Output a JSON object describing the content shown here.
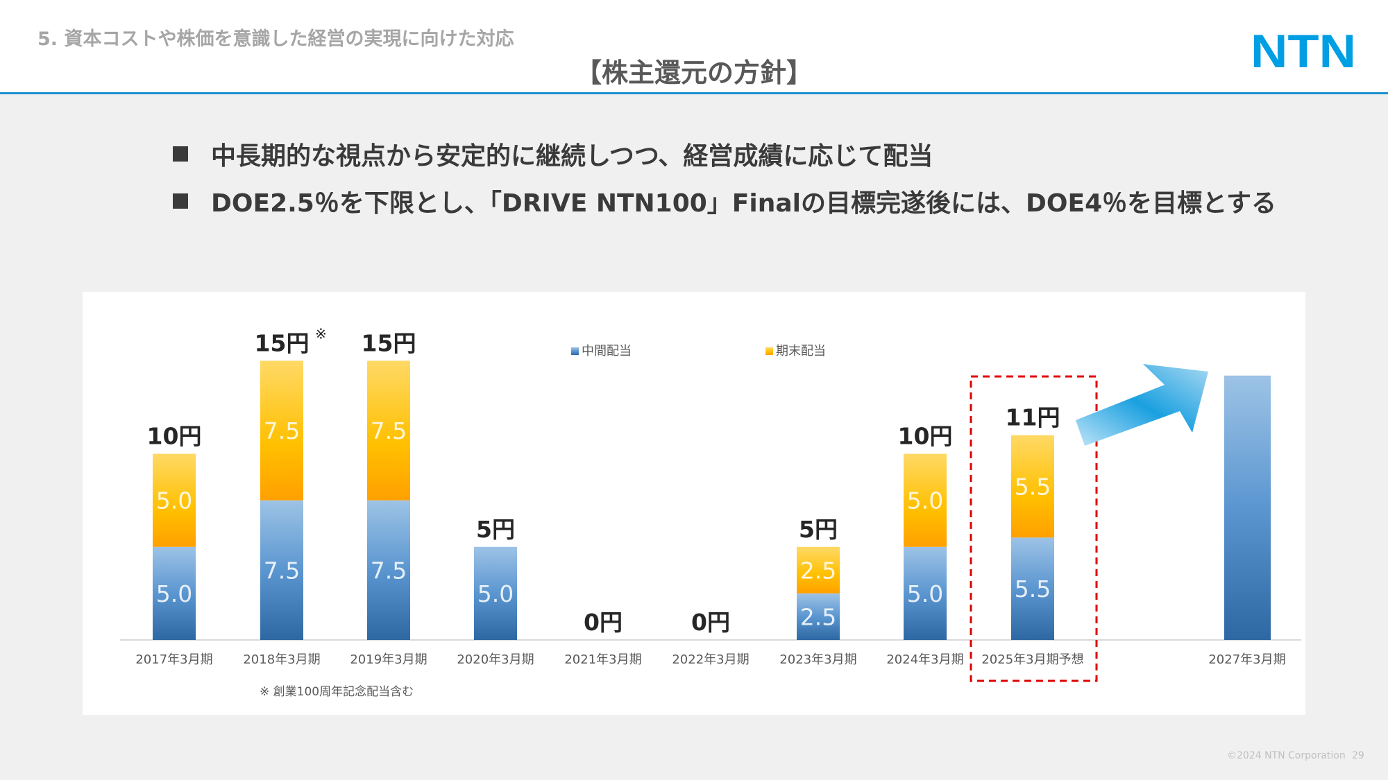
{
  "header": {
    "section": "5. 資本コストや株価を意識した経営の実現に向けた対応",
    "title": "【株主還元の方針】",
    "logo_text": "NTN",
    "accent": "#1a8fcf"
  },
  "bullets": [
    "中長期的な視点から安定的に継続しつつ、経営成績に応じて配当",
    "DOE2.5％を下限とし、「DRIVE NTN100」Finalの目標完遂後には、DOE4％を目標とする"
  ],
  "chart_data": {
    "type": "bar",
    "stacked": true,
    "categories": [
      "2017年3月期",
      "2018年3月期",
      "2019年3月期",
      "2020年3月期",
      "2021年3月期",
      "2022年3月期",
      "2023年3月期",
      "2024年3月期",
      "2025年3月期予想",
      "2027年3月期"
    ],
    "series": [
      {
        "name": "中間配当",
        "values": [
          5.0,
          7.5,
          7.5,
          5.0,
          0,
          0,
          2.5,
          5.0,
          5.5,
          null
        ],
        "color": "#4a86c5"
      },
      {
        "name": "期末配当",
        "values": [
          5.0,
          7.5,
          7.5,
          0,
          0,
          0,
          2.5,
          5.0,
          5.5,
          null
        ],
        "color": "#ffc000"
      }
    ],
    "segment_labels": [
      [
        "5.0",
        "7.5",
        "7.5",
        "5.0",
        "",
        "",
        "2.5",
        "5.0",
        "5.5",
        ""
      ],
      [
        "5.0",
        "7.5",
        "7.5",
        "",
        "",
        "",
        "2.5",
        "5.0",
        "5.5",
        ""
      ]
    ],
    "totals": [
      "10円",
      "15円",
      "15円",
      "5円",
      "0円",
      "0円",
      "5円",
      "10円",
      "11円",
      ""
    ],
    "total_notes": [
      "",
      "※",
      "",
      "",
      "",
      "",
      "",
      "",
      "",
      ""
    ],
    "target": {
      "category": "2027年3月期",
      "value": 14.2
    },
    "highlight": "2025年3月期予想",
    "highlight_color": "#e00000",
    "ylim": [
      0,
      16
    ],
    "grid": false,
    "legend": "top-center",
    "footnote": "※ 創業100周年記念配当含む"
  },
  "footer": {
    "copyright": "©2024 NTN Corporation",
    "page": "29"
  }
}
